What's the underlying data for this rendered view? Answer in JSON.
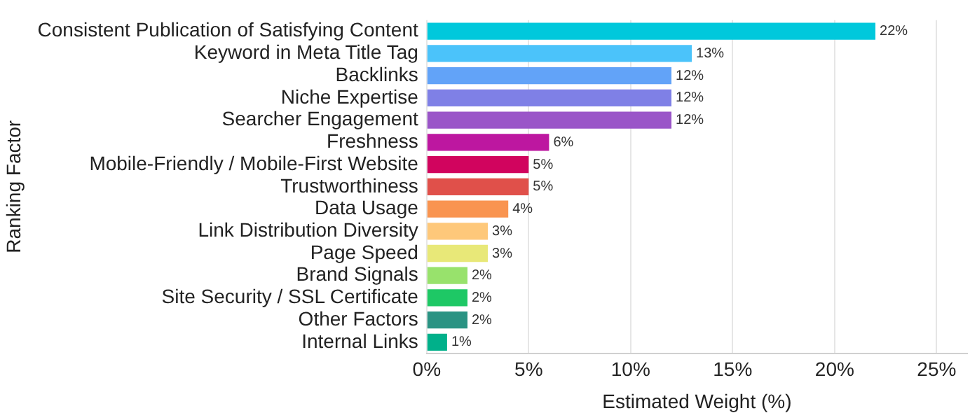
{
  "chart_data": {
    "type": "bar",
    "orientation": "horizontal",
    "xlabel": "Estimated Weight (%)",
    "ylabel": "Ranking Factor",
    "categories": [
      "Consistent Publication of Satisfying Content",
      "Keyword in Meta Title Tag",
      "Backlinks",
      "Niche Expertise",
      "Searcher Engagement",
      "Freshness",
      "Mobile-Friendly / Mobile-First Website",
      "Trustworthiness",
      "Data Usage",
      "Link Distribution Diversity",
      "Page Speed",
      "Brand Signals",
      "Site Security / SSL Certificate",
      "Other Factors",
      "Internal Links"
    ],
    "values": [
      22,
      13,
      12,
      12,
      12,
      6,
      5,
      5,
      4,
      3,
      3,
      2,
      2,
      2,
      1
    ],
    "value_labels": [
      "22%",
      "13%",
      "12%",
      "12%",
      "12%",
      "6%",
      "5%",
      "5%",
      "4%",
      "3%",
      "3%",
      "2%",
      "2%",
      "2%",
      "1%"
    ],
    "colors": [
      "#00c8dc",
      "#4bc3fa",
      "#62a3f8",
      "#7f80e6",
      "#9a55c8",
      "#bd17a0",
      "#d1045e",
      "#e0504a",
      "#f99450",
      "#fec87a",
      "#e8e878",
      "#98e26c",
      "#1ec865",
      "#2a9383",
      "#00b08a"
    ],
    "xlim": [
      0,
      26.5
    ],
    "xticks": [
      {
        "value": 0,
        "label": "0%"
      },
      {
        "value": 5,
        "label": "5%"
      },
      {
        "value": 10,
        "label": "10%"
      },
      {
        "value": 15,
        "label": "15%"
      },
      {
        "value": 20,
        "label": "20%"
      },
      {
        "value": 25,
        "label": "25%"
      }
    ],
    "grid": "x",
    "legend": false
  }
}
